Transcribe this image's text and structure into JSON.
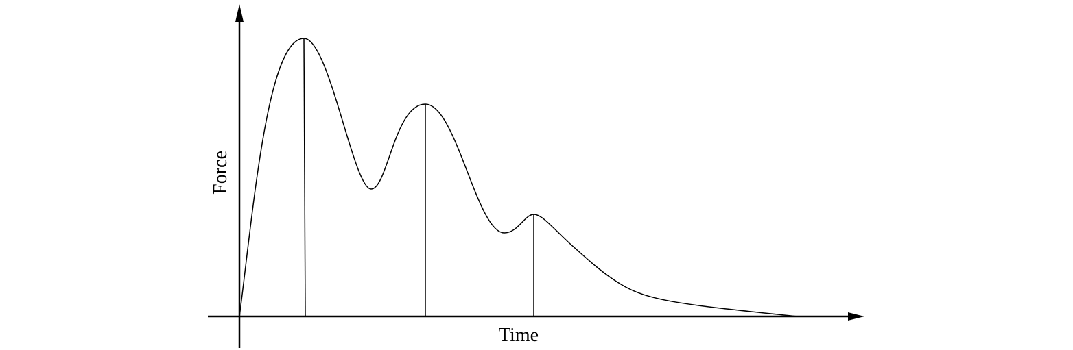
{
  "axes": {
    "x_label": "Time",
    "y_label": "Force"
  }
}
